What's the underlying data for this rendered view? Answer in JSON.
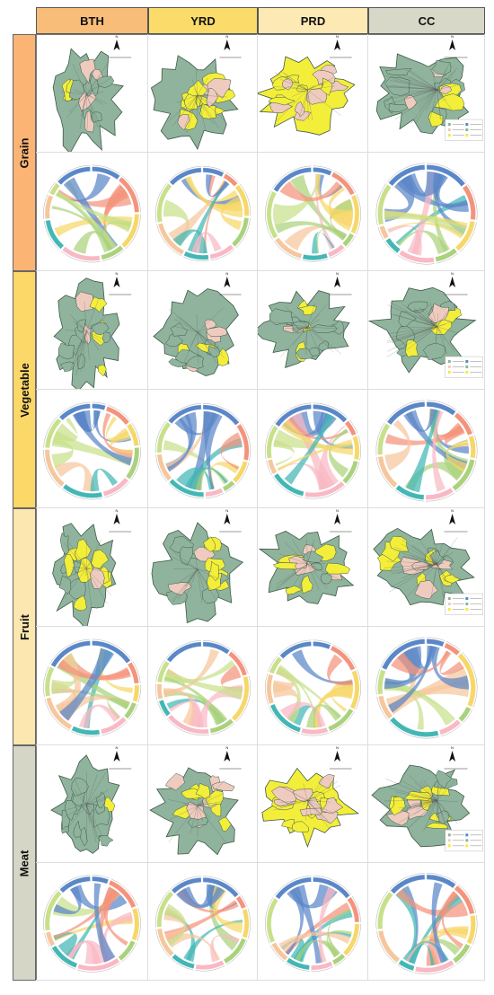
{
  "header": {
    "columns": [
      "BTH",
      "YRD",
      "PRD",
      "CC"
    ],
    "colors": [
      "#f9bd7a",
      "#fbdc6a",
      "#fde9b4",
      "#d8d8c8"
    ]
  },
  "rows": [
    {
      "label": "Grain",
      "color": "#fbb474"
    },
    {
      "label": "Vegetable",
      "color": "#fcd868"
    },
    {
      "label": "Fruit",
      "color": "#fde7b0"
    },
    {
      "label": "Meat",
      "color": "#d6d6c6"
    }
  ],
  "palette": {
    "map_base": "#8fb39c",
    "map_border": "#3f5a48",
    "yellow": "#f3ee3a",
    "pink": "#efcbbf",
    "chord_colors": [
      "#5a87c8",
      "#f4937c",
      "#f7d768",
      "#aad27c",
      "#f9b8c4",
      "#42b7b5",
      "#f6c69c",
      "#c8e08a"
    ]
  },
  "north_arrow": "N"
}
